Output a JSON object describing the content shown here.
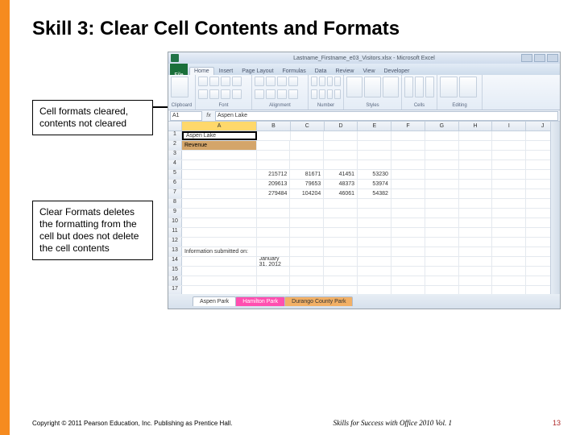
{
  "slide": {
    "title": "Skill 3: Clear Cell Contents and Formats",
    "callout1": "Cell formats cleared, contents not cleared",
    "callout2": "Clear Formats deletes the formatting from the cell but does not delete the cell contents",
    "copyright": "Copyright © 2011 Pearson Education, Inc. Publishing as Prentice Hall.",
    "book": "Skills for Success with Office 2010 Vol. 1",
    "page": "13",
    "accent": "#f68b1f"
  },
  "excel": {
    "titlebar": "Lastname_Firstname_e03_Visitors.xlsx - Microsoft Excel",
    "file_label": "File",
    "tabs": [
      "Home",
      "Insert",
      "Page Layout",
      "Formulas",
      "Data",
      "Review",
      "View",
      "Developer"
    ],
    "active_tab": "Home",
    "ribbon_groups": [
      "Clipboard",
      "Font",
      "Alignment",
      "Number",
      "Styles",
      "Cells",
      "Editing"
    ],
    "namebox": "A1",
    "formula_value": "Aspen Lake",
    "col_widths": {
      "A": 98,
      "other": 44
    },
    "columns": [
      "A",
      "B",
      "C",
      "D",
      "E",
      "F",
      "G",
      "H",
      "I",
      "J"
    ],
    "rows": [
      {
        "n": 1,
        "A": "Aspen Lake"
      },
      {
        "n": 2,
        "A": "Revenue",
        "band": true
      },
      {
        "n": 3
      },
      {
        "n": 4
      },
      {
        "n": 5,
        "B": "215712",
        "C": "81671",
        "D": "41451",
        "E": "53230"
      },
      {
        "n": 6,
        "B": "209613",
        "C": "79653",
        "D": "48373",
        "E": "53974"
      },
      {
        "n": 7,
        "B": "279484",
        "C": "104204",
        "D": "46061",
        "E": "54382"
      },
      {
        "n": 8
      },
      {
        "n": 9
      },
      {
        "n": 10
      },
      {
        "n": 11
      },
      {
        "n": 12
      },
      {
        "n": 13,
        "A": "Information submitted on:"
      },
      {
        "n": 14,
        "B": "January 31, 2012"
      },
      {
        "n": 15
      },
      {
        "n": 16
      },
      {
        "n": 17
      }
    ],
    "sheets": [
      "Aspen Park",
      "Hamilton Park",
      "Durango County Park"
    ],
    "active_sheet": 1,
    "colors": {
      "colA_header": "#ffd86b",
      "a2_band": "#d4a56a",
      "sheet_active": "#ff4fb0",
      "sheet_third": "#f2b066"
    }
  }
}
